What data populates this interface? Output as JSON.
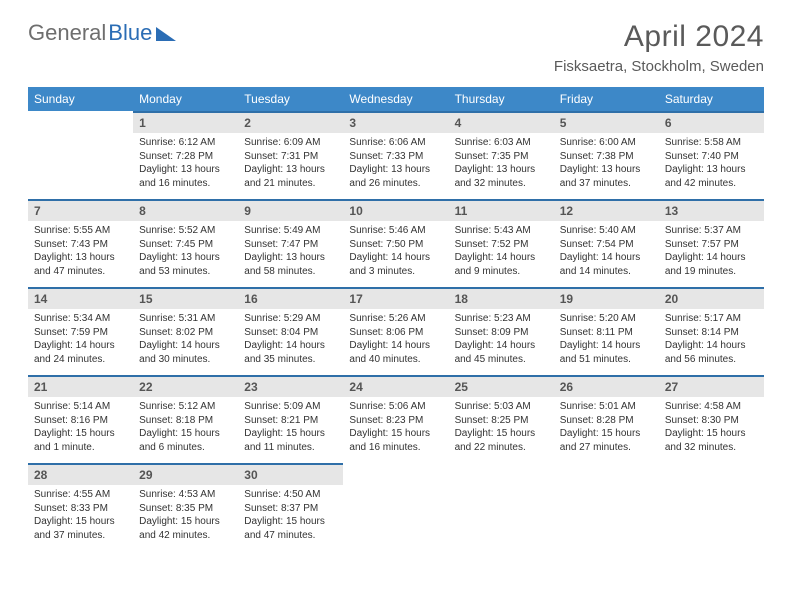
{
  "branding": {
    "word1": "General",
    "word2": "Blue"
  },
  "title": {
    "month": "April 2024",
    "location": "Fisksaetra, Stockholm, Sweden"
  },
  "colors": {
    "header_bg": "#3d88c8",
    "row_border": "#2f6fa8",
    "daynum_bg": "#e6e6e6"
  },
  "day_names": [
    "Sunday",
    "Monday",
    "Tuesday",
    "Wednesday",
    "Thursday",
    "Friday",
    "Saturday"
  ],
  "weeks": [
    [
      {
        "num": "",
        "sunrise": "",
        "sunset": "",
        "daylight": ""
      },
      {
        "num": "1",
        "sunrise": "Sunrise: 6:12 AM",
        "sunset": "Sunset: 7:28 PM",
        "daylight": "Daylight: 13 hours and 16 minutes."
      },
      {
        "num": "2",
        "sunrise": "Sunrise: 6:09 AM",
        "sunset": "Sunset: 7:31 PM",
        "daylight": "Daylight: 13 hours and 21 minutes."
      },
      {
        "num": "3",
        "sunrise": "Sunrise: 6:06 AM",
        "sunset": "Sunset: 7:33 PM",
        "daylight": "Daylight: 13 hours and 26 minutes."
      },
      {
        "num": "4",
        "sunrise": "Sunrise: 6:03 AM",
        "sunset": "Sunset: 7:35 PM",
        "daylight": "Daylight: 13 hours and 32 minutes."
      },
      {
        "num": "5",
        "sunrise": "Sunrise: 6:00 AM",
        "sunset": "Sunset: 7:38 PM",
        "daylight": "Daylight: 13 hours and 37 minutes."
      },
      {
        "num": "6",
        "sunrise": "Sunrise: 5:58 AM",
        "sunset": "Sunset: 7:40 PM",
        "daylight": "Daylight: 13 hours and 42 minutes."
      }
    ],
    [
      {
        "num": "7",
        "sunrise": "Sunrise: 5:55 AM",
        "sunset": "Sunset: 7:43 PM",
        "daylight": "Daylight: 13 hours and 47 minutes."
      },
      {
        "num": "8",
        "sunrise": "Sunrise: 5:52 AM",
        "sunset": "Sunset: 7:45 PM",
        "daylight": "Daylight: 13 hours and 53 minutes."
      },
      {
        "num": "9",
        "sunrise": "Sunrise: 5:49 AM",
        "sunset": "Sunset: 7:47 PM",
        "daylight": "Daylight: 13 hours and 58 minutes."
      },
      {
        "num": "10",
        "sunrise": "Sunrise: 5:46 AM",
        "sunset": "Sunset: 7:50 PM",
        "daylight": "Daylight: 14 hours and 3 minutes."
      },
      {
        "num": "11",
        "sunrise": "Sunrise: 5:43 AM",
        "sunset": "Sunset: 7:52 PM",
        "daylight": "Daylight: 14 hours and 9 minutes."
      },
      {
        "num": "12",
        "sunrise": "Sunrise: 5:40 AM",
        "sunset": "Sunset: 7:54 PM",
        "daylight": "Daylight: 14 hours and 14 minutes."
      },
      {
        "num": "13",
        "sunrise": "Sunrise: 5:37 AM",
        "sunset": "Sunset: 7:57 PM",
        "daylight": "Daylight: 14 hours and 19 minutes."
      }
    ],
    [
      {
        "num": "14",
        "sunrise": "Sunrise: 5:34 AM",
        "sunset": "Sunset: 7:59 PM",
        "daylight": "Daylight: 14 hours and 24 minutes."
      },
      {
        "num": "15",
        "sunrise": "Sunrise: 5:31 AM",
        "sunset": "Sunset: 8:02 PM",
        "daylight": "Daylight: 14 hours and 30 minutes."
      },
      {
        "num": "16",
        "sunrise": "Sunrise: 5:29 AM",
        "sunset": "Sunset: 8:04 PM",
        "daylight": "Daylight: 14 hours and 35 minutes."
      },
      {
        "num": "17",
        "sunrise": "Sunrise: 5:26 AM",
        "sunset": "Sunset: 8:06 PM",
        "daylight": "Daylight: 14 hours and 40 minutes."
      },
      {
        "num": "18",
        "sunrise": "Sunrise: 5:23 AM",
        "sunset": "Sunset: 8:09 PM",
        "daylight": "Daylight: 14 hours and 45 minutes."
      },
      {
        "num": "19",
        "sunrise": "Sunrise: 5:20 AM",
        "sunset": "Sunset: 8:11 PM",
        "daylight": "Daylight: 14 hours and 51 minutes."
      },
      {
        "num": "20",
        "sunrise": "Sunrise: 5:17 AM",
        "sunset": "Sunset: 8:14 PM",
        "daylight": "Daylight: 14 hours and 56 minutes."
      }
    ],
    [
      {
        "num": "21",
        "sunrise": "Sunrise: 5:14 AM",
        "sunset": "Sunset: 8:16 PM",
        "daylight": "Daylight: 15 hours and 1 minute."
      },
      {
        "num": "22",
        "sunrise": "Sunrise: 5:12 AM",
        "sunset": "Sunset: 8:18 PM",
        "daylight": "Daylight: 15 hours and 6 minutes."
      },
      {
        "num": "23",
        "sunrise": "Sunrise: 5:09 AM",
        "sunset": "Sunset: 8:21 PM",
        "daylight": "Daylight: 15 hours and 11 minutes."
      },
      {
        "num": "24",
        "sunrise": "Sunrise: 5:06 AM",
        "sunset": "Sunset: 8:23 PM",
        "daylight": "Daylight: 15 hours and 16 minutes."
      },
      {
        "num": "25",
        "sunrise": "Sunrise: 5:03 AM",
        "sunset": "Sunset: 8:25 PM",
        "daylight": "Daylight: 15 hours and 22 minutes."
      },
      {
        "num": "26",
        "sunrise": "Sunrise: 5:01 AM",
        "sunset": "Sunset: 8:28 PM",
        "daylight": "Daylight: 15 hours and 27 minutes."
      },
      {
        "num": "27",
        "sunrise": "Sunrise: 4:58 AM",
        "sunset": "Sunset: 8:30 PM",
        "daylight": "Daylight: 15 hours and 32 minutes."
      }
    ],
    [
      {
        "num": "28",
        "sunrise": "Sunrise: 4:55 AM",
        "sunset": "Sunset: 8:33 PM",
        "daylight": "Daylight: 15 hours and 37 minutes."
      },
      {
        "num": "29",
        "sunrise": "Sunrise: 4:53 AM",
        "sunset": "Sunset: 8:35 PM",
        "daylight": "Daylight: 15 hours and 42 minutes."
      },
      {
        "num": "30",
        "sunrise": "Sunrise: 4:50 AM",
        "sunset": "Sunset: 8:37 PM",
        "daylight": "Daylight: 15 hours and 47 minutes."
      },
      {
        "num": "",
        "sunrise": "",
        "sunset": "",
        "daylight": ""
      },
      {
        "num": "",
        "sunrise": "",
        "sunset": "",
        "daylight": ""
      },
      {
        "num": "",
        "sunrise": "",
        "sunset": "",
        "daylight": ""
      },
      {
        "num": "",
        "sunrise": "",
        "sunset": "",
        "daylight": ""
      }
    ]
  ]
}
